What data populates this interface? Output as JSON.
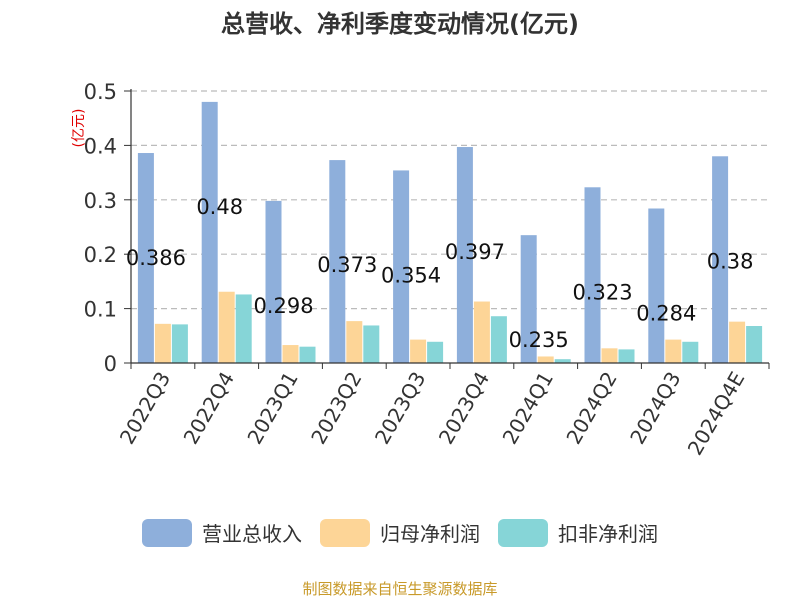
{
  "title": "总营收、净利季度变动情况(亿元)",
  "unit_label": "(亿元)",
  "source": "制图数据来自恒生聚源数据库",
  "colors": {
    "revenue": "#8eafdb",
    "net_profit": "#fdd597",
    "deducted_profit": "#86d5d7",
    "grid": "#bbbbbb",
    "axis": "#333333"
  },
  "chart_data": {
    "type": "bar",
    "title": "总营收、净利季度变动情况(亿元)",
    "ylabel": "(亿元)",
    "ylim": [
      0,
      0.5
    ],
    "yticks": [
      "0",
      "0.1",
      "0.2",
      "0.3",
      "0.4",
      "0.5"
    ],
    "grid": true,
    "legend_position": "bottom",
    "categories": [
      "2022Q3",
      "2022Q4",
      "2023Q1",
      "2023Q2",
      "2023Q3",
      "2023Q4",
      "2024Q1",
      "2024Q2",
      "2024Q3",
      "2024Q4E"
    ],
    "series": [
      {
        "name": "营业总收入",
        "values": [
          0.386,
          0.48,
          0.298,
          0.373,
          0.354,
          0.397,
          0.235,
          0.323,
          0.284,
          0.38
        ],
        "labels": [
          "0.386",
          "0.48",
          "0.298",
          "0.373",
          "0.354",
          "0.397",
          "0.235",
          "0.323",
          "0.284",
          "0.38"
        ]
      },
      {
        "name": "归母净利润",
        "values": [
          0.072,
          0.131,
          0.033,
          0.077,
          0.043,
          0.113,
          0.012,
          0.027,
          0.043,
          0.076
        ]
      },
      {
        "name": "扣非净利润",
        "values": [
          0.071,
          0.126,
          0.03,
          0.069,
          0.039,
          0.086,
          0.007,
          0.025,
          0.039,
          0.068
        ]
      }
    ]
  }
}
